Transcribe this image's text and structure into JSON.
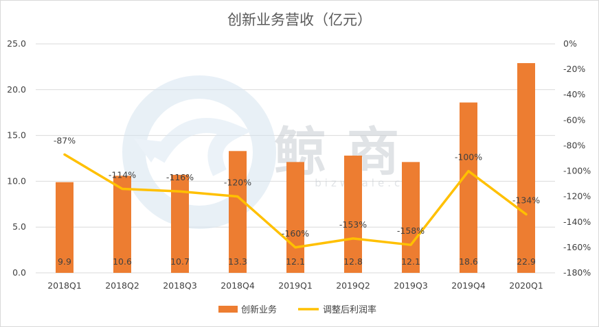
{
  "chart_data": {
    "type": "bar",
    "title": "创新业务营收（亿元）",
    "categories": [
      "2018Q1",
      "2018Q2",
      "2018Q3",
      "2018Q4",
      "2019Q1",
      "2019Q2",
      "2019Q3",
      "2019Q4",
      "2020Q1"
    ],
    "series": [
      {
        "name": "创新业务",
        "type": "bar",
        "axis": "left",
        "color": "#ed7d31",
        "values": [
          9.9,
          10.6,
          10.7,
          13.3,
          12.1,
          12.8,
          12.1,
          18.6,
          22.9
        ],
        "value_labels": [
          "9.9",
          "10.6",
          "10.7",
          "13.3",
          "12.1",
          "12.8",
          "12.1",
          "18.6",
          "22.9"
        ]
      },
      {
        "name": "调整后利润率",
        "type": "line",
        "axis": "right",
        "color": "#ffc000",
        "values": [
          -87,
          -114,
          -116,
          -120,
          -160,
          -153,
          -158,
          -100,
          -134
        ],
        "value_labels": [
          "-87%",
          "-114%",
          "-116%",
          "-120%",
          "-160%",
          "-153%",
          "-158%",
          "-100%",
          "-134%"
        ]
      }
    ],
    "y_left": {
      "min": 0,
      "max": 25,
      "step": 5,
      "tick_labels": [
        "0.0",
        "5.0",
        "10.0",
        "15.0",
        "20.0",
        "25.0"
      ]
    },
    "y_right": {
      "min": -180,
      "max": 0,
      "step": 20,
      "unit": "%",
      "tick_labels": [
        "-180%",
        "-160%",
        "-140%",
        "-120%",
        "-100%",
        "-80%",
        "-60%",
        "-40%",
        "-20%",
        "0%"
      ]
    },
    "grid": true,
    "legend_position": "bottom",
    "watermark": {
      "text": "鲸商",
      "url": "bizwhale.cn"
    }
  }
}
